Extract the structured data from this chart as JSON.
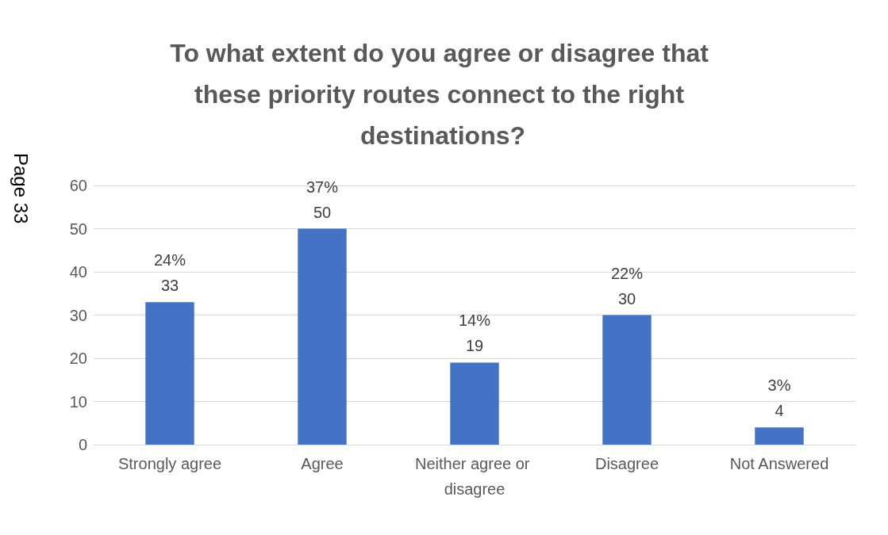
{
  "chart_data": {
    "type": "bar",
    "title": "To what extent do you agree or disagree that these priority routes connect to the right destinations?",
    "categories": [
      "Strongly agree",
      "Agree",
      "Neither agree or disagree",
      "Disagree",
      "Not Answered"
    ],
    "values": [
      33,
      50,
      19,
      30,
      4
    ],
    "value_labels": [
      "24%\n33",
      "37%\n50",
      "14%\n19",
      "22%\n30",
      "3%\n4"
    ],
    "color": "#4472c4",
    "ylim": [
      0,
      60
    ],
    "yticks": [
      0,
      10,
      20,
      30,
      40,
      50,
      60
    ],
    "grid": "y",
    "annotations": [
      "Page 33"
    ]
  }
}
